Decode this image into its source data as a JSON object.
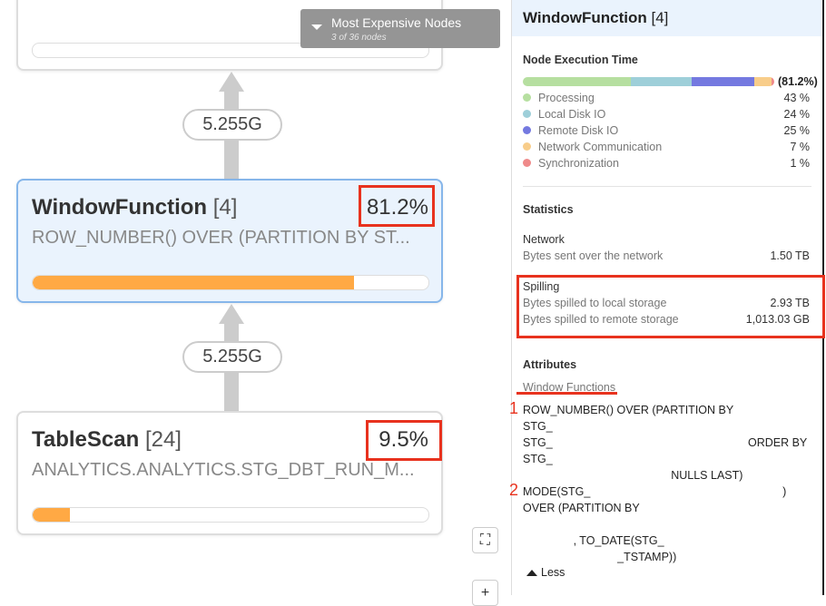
{
  "graph": {
    "dropdown": {
      "title": "Most Expensive Nodes",
      "subtitle": "3 of 36 nodes"
    },
    "edges": [
      "5.255G",
      "5.255G"
    ],
    "nodes": [
      {
        "title": "",
        "progress": 0
      },
      {
        "title": "WindowFunction",
        "id": "[4]",
        "subtitle": "ROW_NUMBER() OVER (PARTITION BY ST...",
        "percent": "81.2%",
        "progress": 81.2
      },
      {
        "title": "TableScan",
        "id": "[24]",
        "subtitle": "ANALYTICS.ANALYTICS.STG_DBT_RUN_M...",
        "percent": "9.5%",
        "progress": 9.5
      }
    ],
    "buttons": {
      "fit": "⛶",
      "zoom_in": "+"
    }
  },
  "panel": {
    "title": "WindowFunction",
    "id": "[4]",
    "execution": {
      "heading": "Node Execution Time",
      "total": "(81.2%)",
      "items": [
        {
          "label": "Processing",
          "value": "43 %",
          "pct": 43,
          "color": "#b6dfa0"
        },
        {
          "label": "Local Disk IO",
          "value": "24 %",
          "pct": 24,
          "color": "#9ecfd9"
        },
        {
          "label": "Remote Disk IO",
          "value": "25 %",
          "pct": 25,
          "color": "#7479e0"
        },
        {
          "label": "Network Communication",
          "value": "7 %",
          "pct": 7,
          "color": "#f8cd8a"
        },
        {
          "label": "Synchronization",
          "value": "1 %",
          "pct": 1,
          "color": "#ef8a8a"
        }
      ]
    },
    "statistics": {
      "heading": "Statistics",
      "network": "Network",
      "network_label": "Bytes sent over the network",
      "network_value": "1.50 TB",
      "spilling": "Spilling",
      "local_label": "Bytes spilled to local storage",
      "local_value": "2.93 TB",
      "remote_label": "Bytes spilled to remote storage",
      "remote_value": "1,013.03 GB"
    },
    "attributes": {
      "heading": "Attributes",
      "sub": "Window Functions",
      "lines": [
        "ROW_NUMBER() OVER (PARTITION BY",
        "STG_",
        "STG_                                                              ORDER BY",
        "STG_",
        "                                               NULLS LAST)",
        "MODE(STG_                                                             )",
        "OVER (PARTITION BY",
        "",
        "                , TO_DATE(STG_",
        "                              _TSTAMP))"
      ],
      "markers": [
        "1",
        "2"
      ],
      "less": "Less"
    }
  }
}
